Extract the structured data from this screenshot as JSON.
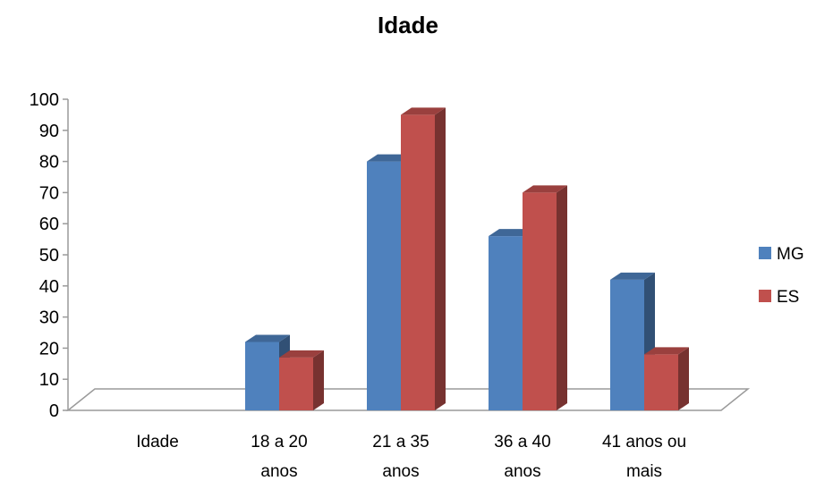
{
  "chart_data": {
    "type": "bar",
    "title": "Idade",
    "categories": [
      [
        "Idade"
      ],
      [
        "18 a 20",
        "anos"
      ],
      [
        "21 a 35",
        "anos"
      ],
      [
        "36 a 40",
        "anos"
      ],
      [
        "41 anos ou",
        "mais"
      ]
    ],
    "series": [
      {
        "name": "MG",
        "color": "#4F81BD",
        "values": [
          0,
          22,
          80,
          56,
          42
        ]
      },
      {
        "name": "ES",
        "color": "#C0504D",
        "values": [
          0,
          17,
          95,
          70,
          18
        ]
      }
    ],
    "ylim": [
      0,
      100
    ],
    "yticks": [
      0,
      10,
      20,
      30,
      40,
      50,
      60,
      70,
      80,
      90,
      100
    ],
    "style": "3d-clustered-column",
    "grid": false,
    "legend": "right"
  }
}
